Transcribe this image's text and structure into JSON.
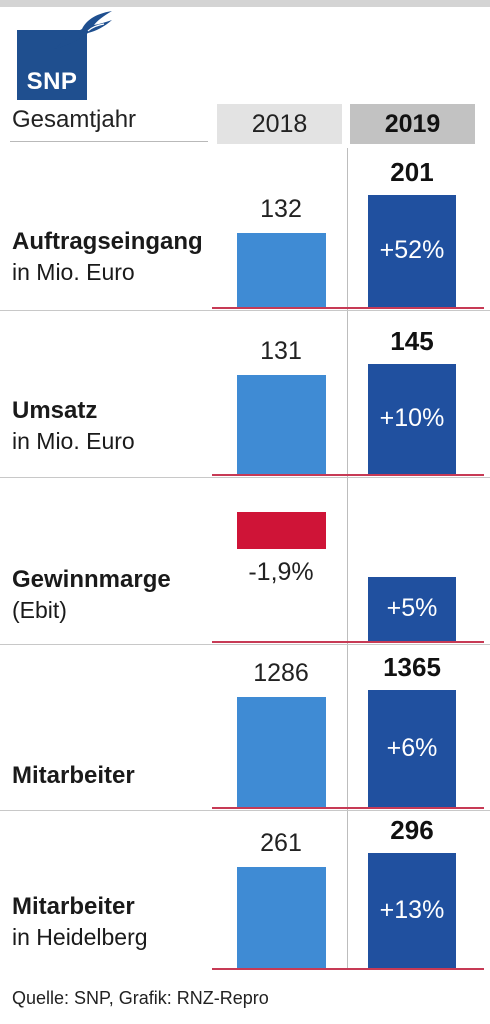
{
  "header": {
    "logo_text": "SNP",
    "label": "Gesamtjahr",
    "year_prev": "2018",
    "year_curr": "2019"
  },
  "colors": {
    "bar_2018": "#3f8bd4",
    "bar_2019": "#20509f",
    "negative": "#cf1437",
    "baseline": "#c73a55"
  },
  "chart_data": {
    "type": "bar",
    "categories": [
      "Auftragseingang in Mio. Euro",
      "Umsatz in Mio. Euro",
      "Gewinnmarge (Ebit)",
      "Mitarbeiter",
      "Mitarbeiter in Heidelberg"
    ],
    "series": [
      {
        "name": "2018",
        "values": [
          132,
          131,
          -1.9,
          1286,
          261
        ]
      },
      {
        "name": "2019",
        "values": [
          201,
          145,
          5,
          1365,
          296
        ]
      }
    ],
    "rows": [
      {
        "title": "Auftragseingang",
        "subtitle": "in Mio. Euro",
        "v2018": 132,
        "v2019": 201,
        "label2018": "132",
        "label2019": "201",
        "change": "+52%"
      },
      {
        "title": "Umsatz",
        "subtitle": "in Mio. Euro",
        "v2018": 131,
        "v2019": 145,
        "label2018": "131",
        "label2019": "145",
        "change": "+10%"
      },
      {
        "title": "Gewinnmarge",
        "subtitle": "(Ebit)",
        "v2018": -1.9,
        "v2019": 5,
        "label2018": "-1,9%",
        "label2019": "",
        "change": "+5%"
      },
      {
        "title": "Mitarbeiter",
        "subtitle": "",
        "v2018": 1286,
        "v2019": 1365,
        "label2018": "1286",
        "label2019": "1365",
        "change": "+6%"
      },
      {
        "title": "Mitarbeiter",
        "subtitle": "in Heidelberg",
        "v2018": 261,
        "v2019": 296,
        "label2018": "261",
        "label2019": "296",
        "change": "+13%"
      }
    ]
  },
  "footer": {
    "source": "Quelle: SNP, Grafik: RNZ-Repro"
  }
}
